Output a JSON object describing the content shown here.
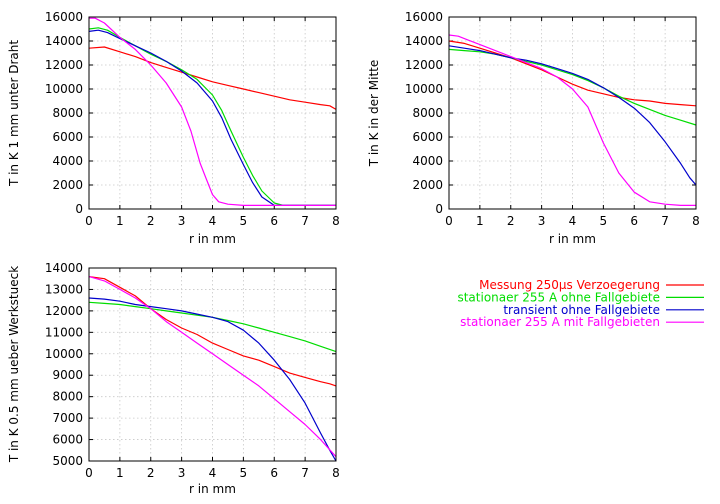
{
  "chart_data": [
    {
      "type": "line",
      "xlabel": "r in mm",
      "ylabel": "T in K 1 mm unter Draht",
      "xlim": [
        0,
        8
      ],
      "ylim": [
        0,
        16000
      ],
      "xticks": [
        0,
        1,
        2,
        3,
        4,
        5,
        6,
        7,
        8
      ],
      "yticks": [
        0,
        2000,
        4000,
        6000,
        8000,
        10000,
        12000,
        14000,
        16000
      ],
      "grid": true,
      "series": [
        {
          "name": "Messung 250µs Verzoegerung",
          "color": "#ff0000",
          "x": [
            0,
            0.5,
            1,
            1.5,
            2,
            2.5,
            3,
            3.5,
            4,
            4.5,
            5,
            5.5,
            6,
            6.5,
            7,
            7.5,
            7.8,
            8
          ],
          "y": [
            13400,
            13500,
            13100,
            12700,
            12200,
            11800,
            11400,
            11000,
            10600,
            10300,
            10000,
            9700,
            9400,
            9100,
            8900,
            8700,
            8600,
            8300
          ]
        },
        {
          "name": "stationaer 255 A ohne Fallgebiete",
          "color": "#00dd00",
          "x": [
            0,
            0.3,
            0.6,
            1,
            1.5,
            2,
            2.5,
            3,
            3.5,
            4,
            4.3,
            4.6,
            5,
            5.3,
            5.6,
            6,
            6.3,
            6.6,
            7,
            7.5,
            8
          ],
          "y": [
            15000,
            15100,
            14900,
            14300,
            13600,
            12900,
            12300,
            11600,
            10800,
            9500,
            8200,
            6500,
            4300,
            2800,
            1500,
            500,
            300,
            300,
            300,
            300,
            300
          ]
        },
        {
          "name": "transient ohne Fallgebiete",
          "color": "#0000cc",
          "x": [
            0,
            0.3,
            0.6,
            1,
            1.5,
            2,
            2.5,
            3,
            3.5,
            4,
            4.3,
            4.6,
            5,
            5.3,
            5.6,
            6,
            6.3,
            6.6,
            7,
            7.5,
            8
          ],
          "y": [
            14800,
            14900,
            14700,
            14200,
            13600,
            13000,
            12300,
            11500,
            10500,
            9000,
            7600,
            5800,
            3700,
            2200,
            1000,
            300,
            300,
            300,
            300,
            300,
            300
          ]
        },
        {
          "name": "stationaer 255 A mit Fallgebieten",
          "color": "#ff00ff",
          "x": [
            0,
            0.2,
            0.5,
            1,
            1.5,
            2,
            2.5,
            3,
            3.3,
            3.6,
            3.8,
            4,
            4.2,
            4.5,
            5,
            5.5,
            6,
            6.5,
            7,
            7.5,
            8
          ],
          "y": [
            15900,
            15900,
            15500,
            14300,
            13300,
            12000,
            10500,
            8500,
            6500,
            3800,
            2500,
            1200,
            600,
            400,
            300,
            300,
            300,
            300,
            300,
            300,
            300
          ]
        }
      ]
    },
    {
      "type": "line",
      "xlabel": "r in mm",
      "ylabel": "T in K in der Mitte",
      "xlim": [
        0,
        8
      ],
      "ylim": [
        0,
        16000
      ],
      "xticks": [
        0,
        1,
        2,
        3,
        4,
        5,
        6,
        7,
        8
      ],
      "yticks": [
        0,
        2000,
        4000,
        6000,
        8000,
        10000,
        12000,
        14000,
        16000
      ],
      "grid": true,
      "series": [
        {
          "name": "Messung 250µs Verzoegerung",
          "color": "#ff0000",
          "x": [
            0,
            0.5,
            1,
            1.5,
            2,
            2.5,
            3,
            3.5,
            4,
            4.5,
            5,
            5.5,
            6,
            6.5,
            7,
            7.5,
            8
          ],
          "y": [
            14000,
            13800,
            13400,
            13000,
            12600,
            12100,
            11600,
            11000,
            10400,
            9900,
            9600,
            9300,
            9100,
            9000,
            8800,
            8700,
            8600
          ]
        },
        {
          "name": "stationaer 255 A ohne Fallgebiete",
          "color": "#00dd00",
          "x": [
            0,
            0.5,
            1,
            1.5,
            2,
            2.5,
            3,
            3.5,
            4,
            4.5,
            5,
            5.5,
            6,
            6.5,
            7,
            7.5,
            8
          ],
          "y": [
            13300,
            13200,
            13100,
            12900,
            12600,
            12300,
            12000,
            11600,
            11200,
            10700,
            10100,
            9400,
            8800,
            8300,
            7800,
            7400,
            7000
          ]
        },
        {
          "name": "transient ohne Fallgebiete",
          "color": "#0000cc",
          "x": [
            0,
            0.5,
            1,
            1.5,
            2,
            2.5,
            3,
            3.5,
            4,
            4.5,
            5,
            5.5,
            6,
            6.5,
            7,
            7.5,
            7.8,
            8
          ],
          "y": [
            13600,
            13400,
            13200,
            12900,
            12600,
            12400,
            12100,
            11700,
            11300,
            10800,
            10100,
            9300,
            8400,
            7200,
            5600,
            3800,
            2600,
            2000
          ]
        },
        {
          "name": "stationaer 255 A mit Fallgebieten",
          "color": "#ff00ff",
          "x": [
            0,
            0.3,
            0.6,
            1,
            1.5,
            2,
            2.5,
            3,
            3.5,
            4,
            4.5,
            5,
            5.5,
            6,
            6.5,
            7,
            7.5,
            8
          ],
          "y": [
            14500,
            14400,
            14100,
            13700,
            13200,
            12700,
            12200,
            11700,
            11000,
            10000,
            8500,
            5500,
            3000,
            1400,
            600,
            400,
            300,
            300
          ]
        }
      ]
    },
    {
      "type": "line",
      "xlabel": "r in mm",
      "ylabel": "T in K 0.5 mm ueber Werkstueck",
      "xlim": [
        0,
        8
      ],
      "ylim": [
        5000,
        14000
      ],
      "xticks": [
        0,
        1,
        2,
        3,
        4,
        5,
        6,
        7,
        8
      ],
      "yticks": [
        5000,
        6000,
        7000,
        8000,
        9000,
        10000,
        11000,
        12000,
        13000,
        14000
      ],
      "grid": true,
      "series": [
        {
          "name": "Messung 250µs Verzoegerung",
          "color": "#ff0000",
          "x": [
            0,
            0.5,
            1,
            1.5,
            2,
            2.5,
            3,
            3.5,
            4,
            4.5,
            5,
            5.5,
            6,
            6.5,
            7,
            7.5,
            7.8,
            8
          ],
          "y": [
            13600,
            13500,
            13100,
            12700,
            12100,
            11600,
            11200,
            10900,
            10500,
            10200,
            9900,
            9700,
            9400,
            9100,
            8900,
            8700,
            8600,
            8500
          ]
        },
        {
          "name": "stationaer 255 A ohne Fallgebiete",
          "color": "#00dd00",
          "x": [
            0,
            0.5,
            1,
            1.5,
            2,
            2.5,
            3,
            3.5,
            4,
            4.5,
            5,
            5.5,
            6,
            6.5,
            7,
            7.5,
            8
          ],
          "y": [
            12400,
            12350,
            12300,
            12200,
            12100,
            12000,
            11900,
            11800,
            11700,
            11550,
            11400,
            11200,
            11000,
            10800,
            10600,
            10350,
            10100
          ]
        },
        {
          "name": "transient ohne Fallgebiete",
          "color": "#0000cc",
          "x": [
            0,
            0.5,
            1,
            1.5,
            2,
            2.5,
            3,
            3.5,
            4,
            4.5,
            5,
            5.5,
            6,
            6.5,
            7,
            7.5,
            7.8,
            8
          ],
          "y": [
            12600,
            12550,
            12450,
            12300,
            12200,
            12100,
            12000,
            11850,
            11700,
            11500,
            11100,
            10500,
            9700,
            8800,
            7700,
            6300,
            5500,
            5000
          ]
        },
        {
          "name": "stationaer 255 A mit Fallgebieten",
          "color": "#ff00ff",
          "x": [
            0,
            0.5,
            1,
            1.5,
            2,
            2.5,
            3,
            3.5,
            4,
            4.5,
            5,
            5.5,
            6,
            6.5,
            7,
            7.5,
            8
          ],
          "y": [
            13600,
            13400,
            13000,
            12600,
            12100,
            11500,
            11000,
            10500,
            10000,
            9500,
            9000,
            8500,
            7900,
            7300,
            6700,
            6000,
            5200
          ]
        }
      ]
    }
  ],
  "legend": {
    "placement": "lower-right",
    "entries": [
      {
        "label": "Messung 250µs Verzoegerung",
        "color": "#ff0000"
      },
      {
        "label": "stationaer 255 A ohne Fallgebiete",
        "color": "#00dd00"
      },
      {
        "label": "transient ohne Fallgebiete",
        "color": "#0000cc"
      },
      {
        "label": "stationaer 255 A mit Fallgebieten",
        "color": "#ff00ff"
      }
    ]
  }
}
